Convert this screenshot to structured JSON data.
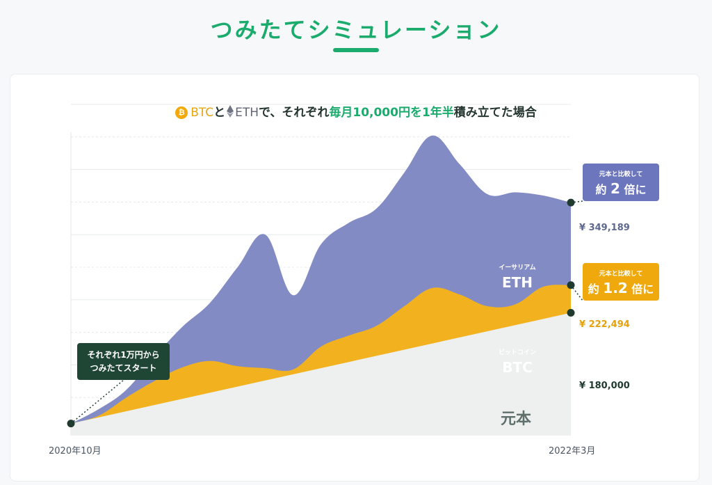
{
  "page": {
    "title": "つみたてシミュレーション"
  },
  "chart_data": {
    "type": "area",
    "title_parts": {
      "coin_btc": "BTC",
      "and": "と",
      "coin_eth": "ETH",
      "mid": "で、それぞれ",
      "highlight": "毎月10,000円を1年半",
      "end": "積み立てた場合"
    },
    "x_start_label": "2020年10月",
    "x_end_label": "2022年3月",
    "x": [
      0,
      1,
      2,
      3,
      4,
      5,
      6,
      7,
      8,
      9,
      10,
      11,
      12,
      13,
      14,
      15,
      16,
      17,
      18
    ],
    "series": [
      {
        "name": "元本",
        "color": "#edf0ee",
        "values": [
          10000,
          19000,
          28000,
          37000,
          46000,
          55000,
          64000,
          73000,
          82000,
          91000,
          100000,
          109000,
          118000,
          127000,
          136000,
          145000,
          154000,
          163000,
          180000
        ]
      },
      {
        "name": "BTC",
        "color": "#f2b21f",
        "values": [
          10000,
          22000,
          50000,
          75000,
          96000,
          106000,
          98000,
          95000,
          93000,
          128000,
          145000,
          160000,
          190000,
          218000,
          208000,
          190000,
          193000,
          220000,
          222494
        ]
      },
      {
        "name": "ETH",
        "color": "#828bc4",
        "values": [
          10000,
          32000,
          62000,
          112000,
          158000,
          195000,
          250000,
          300000,
          207000,
          285000,
          318000,
          340000,
          395000,
          452000,
          408000,
          362000,
          365000,
          360000,
          349189
        ]
      }
    ],
    "series_labels": {
      "eth_sub": "イーサリアム",
      "eth_main": "ETH",
      "btc_sub": "ビットコイン",
      "btc_main": "BTC",
      "principal": "元本"
    },
    "end_values": {
      "eth": "¥ 349,189",
      "btc": "¥ 222,494",
      "principal": "¥ 180,000"
    },
    "callouts": {
      "start_line1": "それぞれ1万円から",
      "start_line2": "つみたてスタート",
      "eth_small": "元本と比較して",
      "eth_prefix": "約",
      "eth_number": "2",
      "eth_suffix": "倍に",
      "btc_small": "元本と比較して",
      "btc_prefix": "約",
      "btc_number": "1.2",
      "btc_suffix": "倍に"
    },
    "ylim": [
      0,
      500000
    ],
    "grid": true,
    "colors": {
      "title_green": "#1aab6d",
      "eth_box": "#6b76bd",
      "btc_box": "#f0a90c",
      "start_box": "#1f4535",
      "marker": "#1f3b2f"
    }
  }
}
